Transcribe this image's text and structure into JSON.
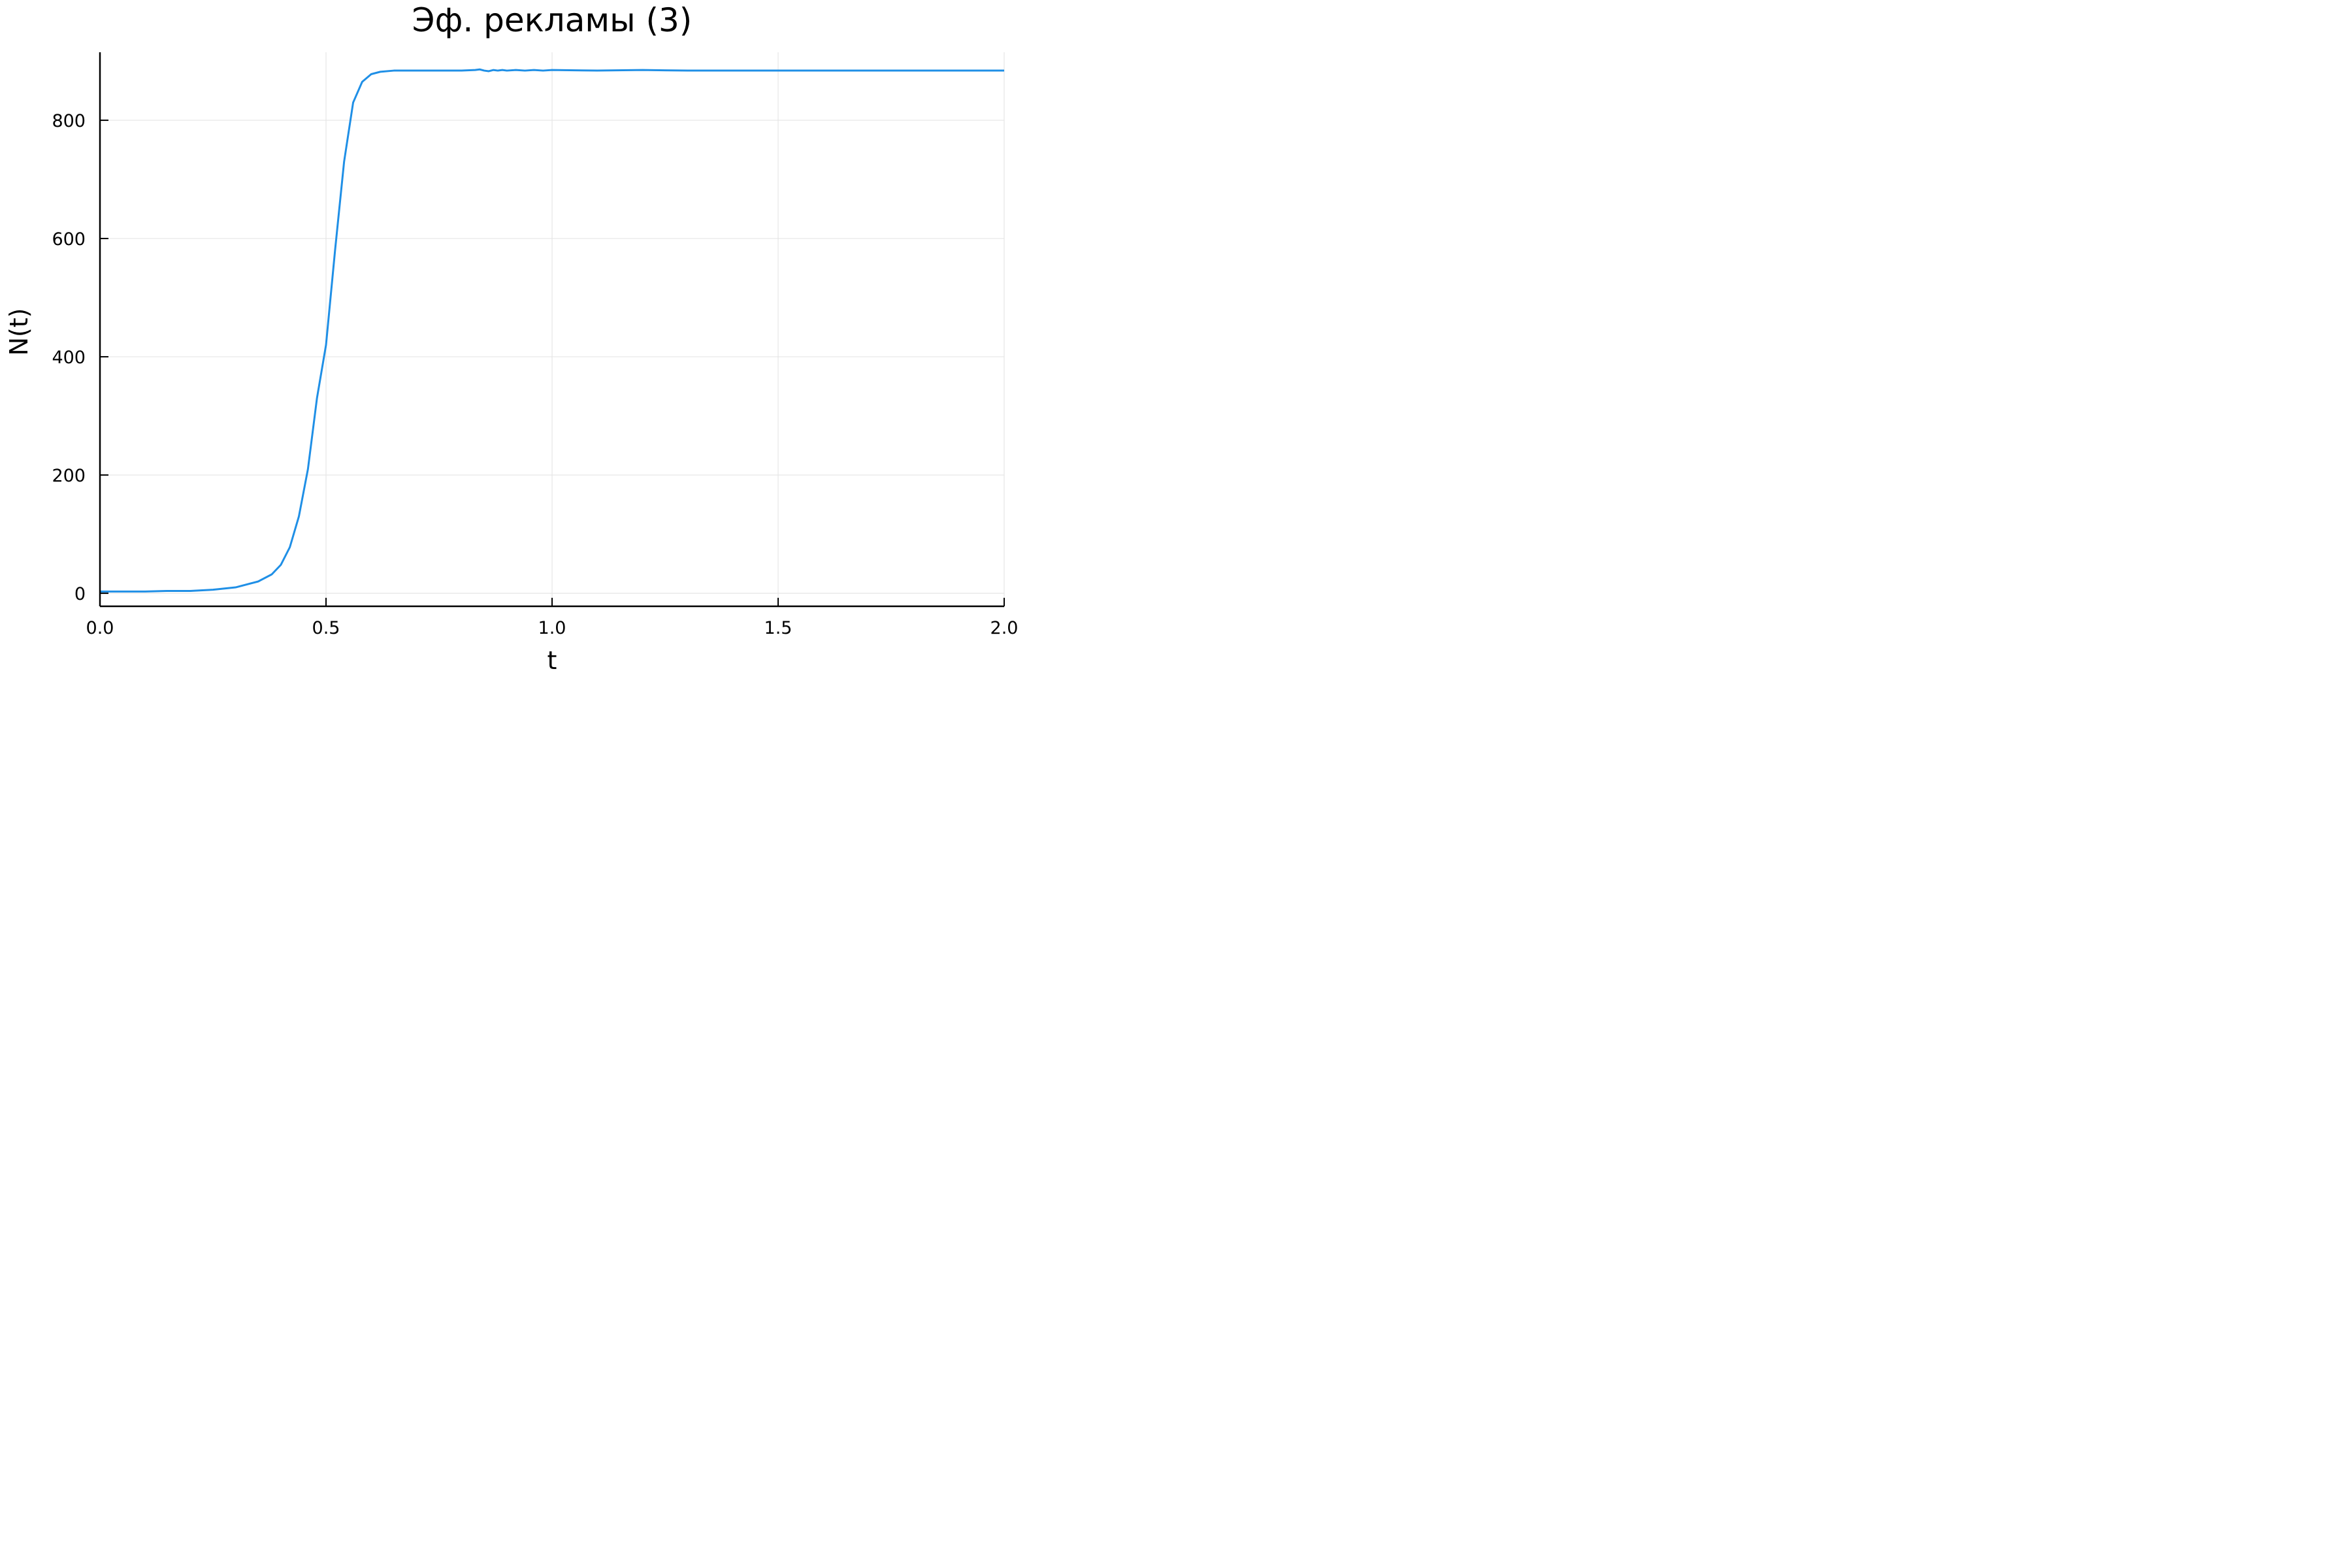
{
  "chart_data": {
    "type": "line",
    "title": "Эф. рекламы (3)",
    "xlabel": "t",
    "ylabel": "N(t)",
    "xlim": [
      0,
      2
    ],
    "ylim": [
      -22,
      915
    ],
    "grid": true,
    "legend": "none",
    "x_ticks": [
      0.0,
      0.5,
      1.0,
      1.5,
      2.0
    ],
    "x_tick_labels": [
      "0.0",
      "0.5",
      "1.0",
      "1.5",
      "2.0"
    ],
    "y_ticks": [
      0,
      200,
      400,
      600,
      800
    ],
    "y_tick_labels": [
      "0",
      "200",
      "400",
      "600",
      "800"
    ],
    "colors": {
      "series": "#1f8fe6",
      "grid": "#e5e5e5",
      "axis": "#000000"
    },
    "series": [
      {
        "x": [
          0,
          0.05,
          0.1,
          0.15,
          0.2,
          0.25,
          0.3,
          0.35,
          0.38,
          0.4,
          0.42,
          0.44,
          0.46,
          0.48,
          0.5,
          0.52,
          0.54,
          0.56,
          0.58,
          0.6,
          0.62,
          0.65,
          0.7,
          0.75,
          0.8,
          0.83,
          0.84,
          0.85,
          0.86,
          0.87,
          0.88,
          0.89,
          0.9,
          0.92,
          0.94,
          0.96,
          0.98,
          1.0,
          1.1,
          1.2,
          1.3,
          1.4,
          1.5,
          1.6,
          1.7,
          1.8,
          1.9,
          2.0
        ],
        "y": [
          3,
          3,
          3,
          4,
          4,
          6,
          10,
          20,
          32,
          48,
          78,
          130,
          210,
          330,
          420,
          580,
          730,
          830,
          865,
          878,
          882,
          884,
          884,
          884,
          884,
          885,
          886,
          884,
          883,
          885,
          884,
          885,
          884,
          885,
          884,
          885,
          884,
          885,
          884,
          885,
          884,
          884,
          884,
          884,
          884,
          884,
          884,
          884
        ]
      }
    ]
  }
}
